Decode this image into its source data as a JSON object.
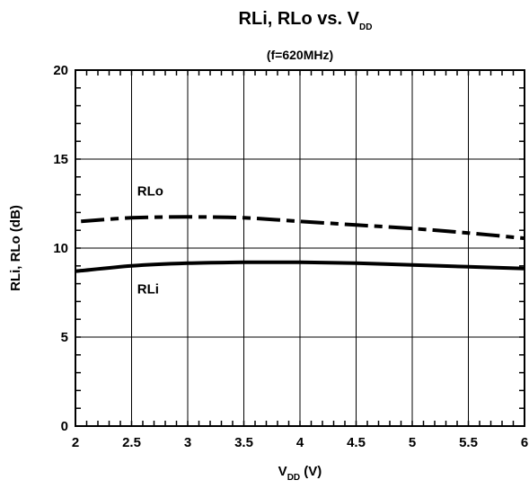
{
  "chart_data": {
    "type": "line",
    "title_main": "RLi, RLo vs. V",
    "title_sub": "DD",
    "subtitle": "(f=620MHz)",
    "xlabel_main": "V",
    "xlabel_sub": "DD",
    "xlabel_unit": " (V)",
    "ylabel": "RLi, RLo (dB)",
    "xlim": [
      2,
      6
    ],
    "ylim": [
      0,
      20
    ],
    "x_ticks": [
      2,
      2.5,
      3,
      3.5,
      4,
      4.5,
      5,
      5.5,
      6
    ],
    "x_tick_labels": [
      "2",
      "2.5",
      "3",
      "3.5",
      "4",
      "4.5",
      "5",
      "5.5",
      "6"
    ],
    "y_ticks": [
      0,
      5,
      10,
      15,
      20
    ],
    "y_tick_labels": [
      "0",
      "5",
      "10",
      "15",
      "20"
    ],
    "grid": true,
    "series": [
      {
        "name": "RLo",
        "style": "dashed",
        "color": "#000000",
        "x": [
          2.05,
          2.5,
          3.0,
          3.5,
          4.0,
          4.5,
          5.0,
          5.5,
          6.0
        ],
        "y": [
          11.5,
          11.7,
          11.75,
          11.7,
          11.5,
          11.3,
          11.1,
          10.85,
          10.55
        ]
      },
      {
        "name": "RLi",
        "style": "solid",
        "color": "#000000",
        "x": [
          2.0,
          2.5,
          3.0,
          3.5,
          4.0,
          4.5,
          5.0,
          5.5,
          6.0
        ],
        "y": [
          8.7,
          9.0,
          9.15,
          9.2,
          9.2,
          9.15,
          9.05,
          8.95,
          8.85
        ]
      }
    ],
    "series_labels": [
      {
        "name": "RLo",
        "x": 2.55,
        "y": 12.95
      },
      {
        "name": "RLi",
        "x": 2.55,
        "y": 7.45
      }
    ]
  }
}
